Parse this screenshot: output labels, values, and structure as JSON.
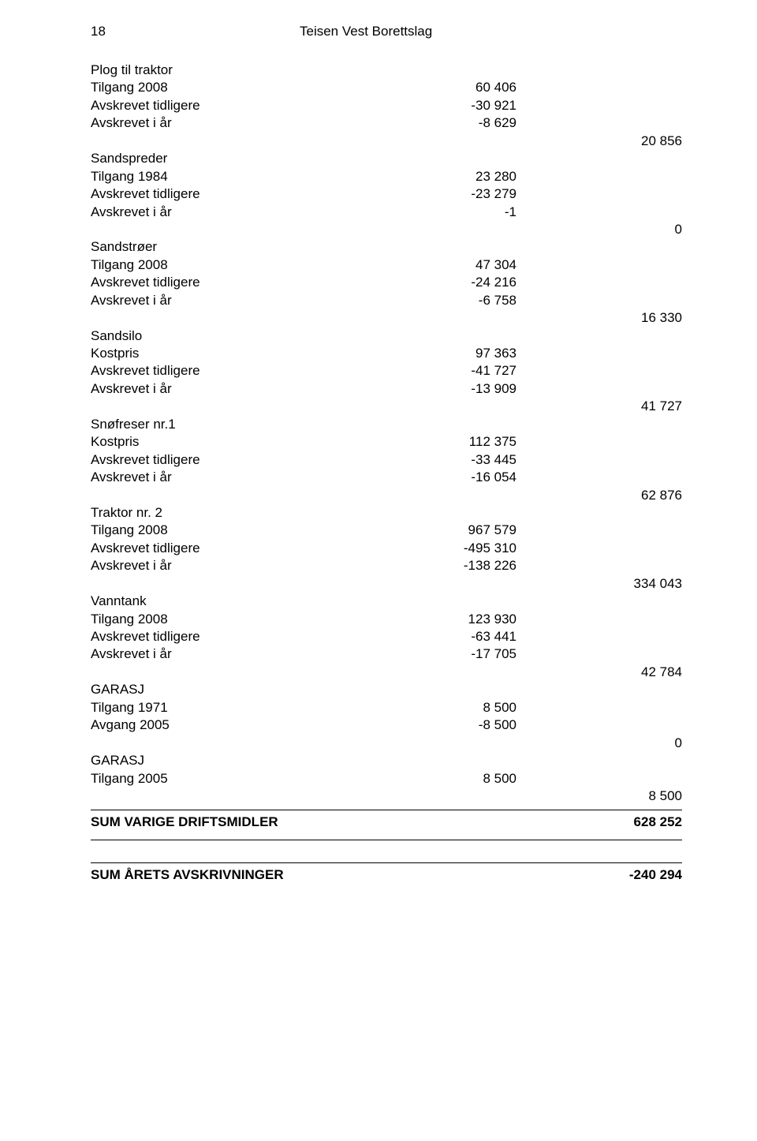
{
  "header": {
    "page_no": "18",
    "title": "Teisen Vest Borettslag"
  },
  "groups": [
    {
      "title": "Plog til traktor",
      "lines": [
        {
          "label": "Tilgang 2008",
          "value": "60 406"
        },
        {
          "label": "Avskrevet tidligere",
          "value": "-30 921"
        },
        {
          "label": "Avskrevet i år",
          "value": "-8 629"
        }
      ],
      "sum": "20 856"
    },
    {
      "title": "Sandspreder",
      "lines": [
        {
          "label": "Tilgang 1984",
          "value": "23 280"
        },
        {
          "label": "Avskrevet tidligere",
          "value": "-23 279"
        },
        {
          "label": "Avskrevet i år",
          "value": "-1"
        }
      ],
      "sum": "0"
    },
    {
      "title": "Sandstrøer",
      "lines": [
        {
          "label": "Tilgang 2008",
          "value": "47 304"
        },
        {
          "label": "Avskrevet tidligere",
          "value": "-24 216"
        },
        {
          "label": "Avskrevet i år",
          "value": "-6 758"
        }
      ],
      "sum": "16 330"
    },
    {
      "title": "Sandsilo",
      "lines": [
        {
          "label": "Kostpris",
          "value": "97 363"
        },
        {
          "label": "Avskrevet tidligere",
          "value": "-41 727"
        },
        {
          "label": "Avskrevet i år",
          "value": "-13 909"
        }
      ],
      "sum": "41 727"
    },
    {
      "title": "Snøfreser nr.1",
      "lines": [
        {
          "label": "Kostpris",
          "value": "112 375"
        },
        {
          "label": "Avskrevet tidligere",
          "value": "-33 445"
        },
        {
          "label": "Avskrevet i år",
          "value": "-16 054"
        }
      ],
      "sum": "62 876"
    },
    {
      "title": "Traktor nr. 2",
      "lines": [
        {
          "label": "Tilgang 2008",
          "value": "967 579"
        },
        {
          "label": "Avskrevet tidligere",
          "value": "-495 310"
        },
        {
          "label": "Avskrevet i år",
          "value": "-138 226"
        }
      ],
      "sum": "334 043"
    },
    {
      "title": "Vanntank",
      "lines": [
        {
          "label": "Tilgang 2008",
          "value": "123 930"
        },
        {
          "label": "Avskrevet tidligere",
          "value": "-63 441"
        },
        {
          "label": "Avskrevet i år",
          "value": "-17 705"
        }
      ],
      "sum": "42 784"
    },
    {
      "title": "GARASJ",
      "lines": [
        {
          "label": "Tilgang 1971",
          "value": "8 500"
        },
        {
          "label": "Avgang 2005",
          "value": "-8 500"
        }
      ],
      "sum": "0"
    },
    {
      "title": "GARASJ",
      "lines": [
        {
          "label": "Tilgang 2005",
          "value": "8 500"
        }
      ],
      "sum": "8 500"
    }
  ],
  "total1": {
    "label": "SUM VARIGE DRIFTSMIDLER",
    "value": "628 252"
  },
  "total2": {
    "label": "SUM ÅRETS AVSKRIVNINGER",
    "value": "-240 294"
  }
}
